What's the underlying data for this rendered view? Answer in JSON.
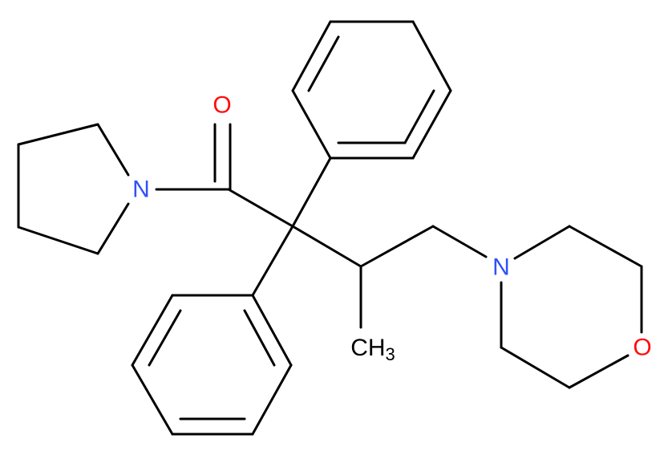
{
  "atoms": [
    {
      "label": "O"
    },
    {
      "label": "N"
    },
    {
      "label": "N"
    },
    {
      "label": "O"
    },
    {
      "label": "CH",
      "subscript": "3"
    }
  ]
}
